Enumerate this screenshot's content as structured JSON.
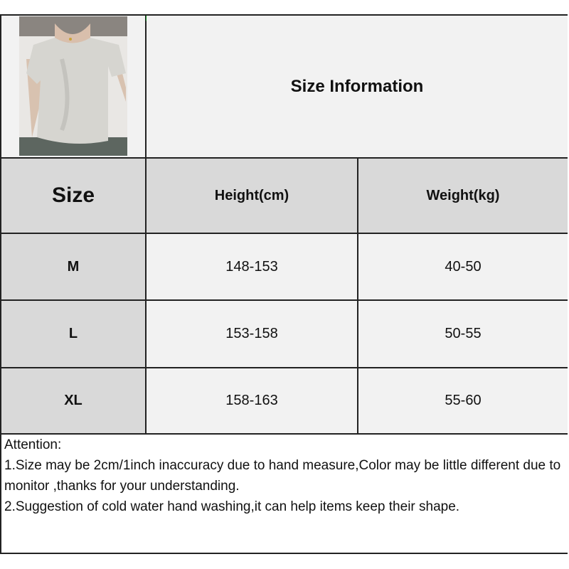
{
  "title": "Size Information",
  "table": {
    "headers": [
      "Size",
      "Height(cm)",
      "Weight(kg)"
    ],
    "rows": [
      {
        "size": "M",
        "height": "148-153",
        "weight": "40-50"
      },
      {
        "size": "L",
        "height": "153-158",
        "weight": "50-55"
      },
      {
        "size": "XL",
        "height": "158-163",
        "weight": "55-60"
      }
    ]
  },
  "notes": {
    "heading": "Attention:",
    "lines": [
      "1.Size may be 2cm/1inch inaccuracy due to hand measure,Color may be little different due to monitor ,thanks for your understanding.",
      "2.Suggestion of cold water hand washing,it can help items keep their shape."
    ]
  },
  "colors": {
    "header_bg": "#d9d9d9",
    "cell_bg": "#f2f2f2",
    "border": "#222222"
  }
}
